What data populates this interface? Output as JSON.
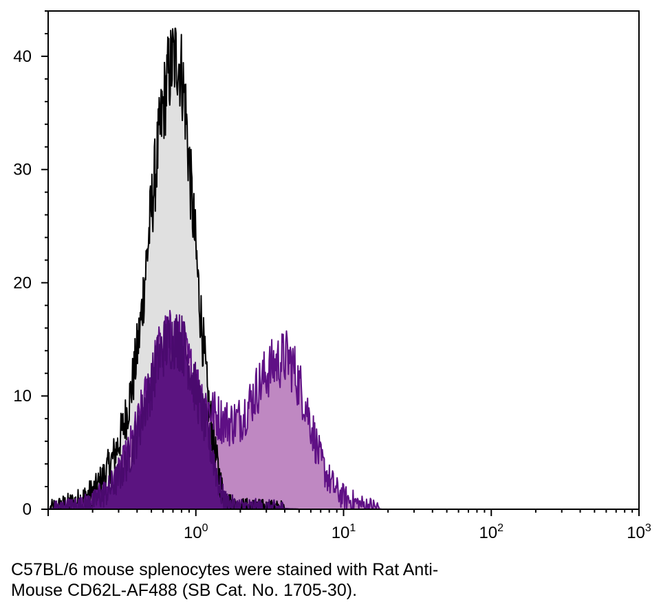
{
  "chart_data": {
    "type": "area",
    "title": "",
    "xlabel": "",
    "ylabel": "",
    "x_scale": "log",
    "xlim": [
      0.1,
      1000
    ],
    "ylim": [
      0,
      44
    ],
    "grid": false,
    "legend": "none",
    "y_ticks": [
      0,
      10,
      20,
      30,
      40
    ],
    "y_tick_labels": [
      "0",
      "10",
      "20",
      "30",
      "40"
    ],
    "x_ticks": [
      1,
      10,
      100,
      1000
    ],
    "x_tick_labels": [
      {
        "base": "10",
        "exp": "0"
      },
      {
        "base": "10",
        "exp": "1"
      },
      {
        "base": "10",
        "exp": "2"
      },
      {
        "base": "10",
        "exp": "3"
      }
    ],
    "series": [
      {
        "color": "#e0e0e0",
        "stroke": "#000000",
        "points": [
          [
            0.1,
            0
          ],
          [
            0.12,
            0.3
          ],
          [
            0.15,
            0.6
          ],
          [
            0.18,
            1.1
          ],
          [
            0.21,
            1.8
          ],
          [
            0.24,
            3
          ],
          [
            0.27,
            4.3
          ],
          [
            0.3,
            5.8
          ],
          [
            0.34,
            8.4
          ],
          [
            0.38,
            11.8
          ],
          [
            0.42,
            16
          ],
          [
            0.46,
            21.5
          ],
          [
            0.5,
            26.5
          ],
          [
            0.55,
            31.5
          ],
          [
            0.6,
            35.5
          ],
          [
            0.65,
            38.3
          ],
          [
            0.7,
            39.6
          ],
          [
            0.75,
            40
          ],
          [
            0.8,
            38.6
          ],
          [
            0.85,
            35.5
          ],
          [
            0.9,
            30.5
          ],
          [
            0.95,
            26.5
          ],
          [
            1.0,
            22.8
          ],
          [
            1.05,
            19
          ],
          [
            1.1,
            16
          ],
          [
            1.15,
            13
          ],
          [
            1.2,
            10
          ],
          [
            1.3,
            6.5
          ],
          [
            1.4,
            3.8
          ],
          [
            1.5,
            1.8
          ],
          [
            1.6,
            0.9
          ],
          [
            1.7,
            0.5
          ],
          [
            1.8,
            0.3
          ],
          [
            2,
            0.2
          ],
          [
            2.5,
            0.15
          ],
          [
            3,
            0.1
          ],
          [
            4,
            0.05
          ],
          [
            5,
            0
          ]
        ]
      },
      {
        "color": "#bf88c2",
        "stroke": "#5f1085",
        "points": [
          [
            0.1,
            0
          ],
          [
            0.15,
            0.2
          ],
          [
            0.2,
            0.6
          ],
          [
            0.25,
            1.6
          ],
          [
            0.3,
            3
          ],
          [
            0.35,
            5
          ],
          [
            0.4,
            7.2
          ],
          [
            0.45,
            9.5
          ],
          [
            0.5,
            11.5
          ],
          [
            0.55,
            13.5
          ],
          [
            0.6,
            14.6
          ],
          [
            0.65,
            15
          ],
          [
            0.7,
            15
          ],
          [
            0.75,
            15
          ],
          [
            0.8,
            14.5
          ],
          [
            0.9,
            12.6
          ],
          [
            1.0,
            11
          ],
          [
            1.1,
            10
          ],
          [
            1.2,
            9.1
          ],
          [
            1.3,
            8.6
          ],
          [
            1.4,
            8.2
          ],
          [
            1.5,
            7.9
          ],
          [
            1.7,
            7.6
          ],
          [
            2.0,
            8
          ],
          [
            2.3,
            9.3
          ],
          [
            2.6,
            10.6
          ],
          [
            3.0,
            12
          ],
          [
            3.4,
            12.8
          ],
          [
            3.8,
            13.2
          ],
          [
            4.2,
            13.4
          ],
          [
            4.6,
            12.5
          ],
          [
            5.0,
            11
          ],
          [
            5.5,
            9.5
          ],
          [
            6,
            7.6
          ],
          [
            6.5,
            5.8
          ],
          [
            7,
            4.2
          ],
          [
            8,
            2.6
          ],
          [
            9,
            1.6
          ],
          [
            10,
            1.1
          ],
          [
            11,
            0.8
          ],
          [
            12,
            0.6
          ],
          [
            13,
            0.4
          ],
          [
            15,
            0.25
          ],
          [
            17,
            0.15
          ],
          [
            18,
            0
          ]
        ]
      },
      {
        "color": "#5b1480",
        "stroke": "#4a0a6e",
        "points": [
          [
            0.1,
            0
          ],
          [
            0.15,
            0.2
          ],
          [
            0.2,
            0.6
          ],
          [
            0.25,
            1.5
          ],
          [
            0.3,
            2.8
          ],
          [
            0.35,
            4.5
          ],
          [
            0.4,
            6.6
          ],
          [
            0.45,
            9
          ],
          [
            0.5,
            11
          ],
          [
            0.55,
            13
          ],
          [
            0.6,
            14.2
          ],
          [
            0.65,
            14.8
          ],
          [
            0.7,
            15
          ],
          [
            0.75,
            15
          ],
          [
            0.8,
            14.7
          ],
          [
            0.85,
            14
          ],
          [
            0.9,
            12.8
          ],
          [
            0.95,
            11.5
          ],
          [
            1.0,
            10.5
          ],
          [
            1.05,
            9.5
          ],
          [
            1.1,
            8.5
          ],
          [
            1.15,
            7.6
          ],
          [
            1.2,
            6.7
          ],
          [
            1.3,
            4.8
          ],
          [
            1.4,
            2.8
          ],
          [
            1.5,
            1.2
          ],
          [
            1.6,
            0.6
          ],
          [
            1.8,
            0.3
          ],
          [
            2,
            0.2
          ],
          [
            3,
            0.1
          ],
          [
            5,
            0
          ]
        ]
      }
    ]
  },
  "caption": {
    "line1": "C57BL/6 mouse splenocytes were stained with Rat Anti-",
    "line2": "Mouse CD62L-AF488 (SB Cat. No. 1705-30)."
  }
}
